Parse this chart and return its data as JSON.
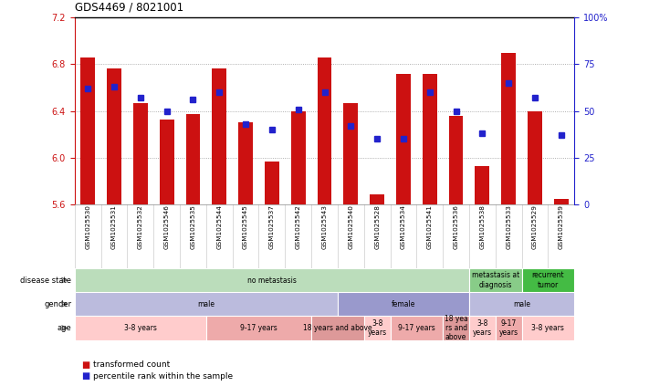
{
  "title": "GDS4469 / 8021001",
  "samples": [
    "GSM1025530",
    "GSM1025531",
    "GSM1025532",
    "GSM1025546",
    "GSM1025535",
    "GSM1025544",
    "GSM1025545",
    "GSM1025537",
    "GSM1025542",
    "GSM1025543",
    "GSM1025540",
    "GSM1025528",
    "GSM1025534",
    "GSM1025541",
    "GSM1025536",
    "GSM1025538",
    "GSM1025533",
    "GSM1025529",
    "GSM1025539"
  ],
  "transformed_count": [
    6.86,
    6.76,
    6.47,
    6.33,
    6.37,
    6.76,
    6.3,
    5.97,
    6.4,
    6.86,
    6.47,
    5.69,
    6.72,
    6.72,
    6.36,
    5.93,
    6.9,
    6.4,
    5.65
  ],
  "percentile_rank": [
    62,
    63,
    57,
    50,
    56,
    60,
    43,
    40,
    51,
    60,
    42,
    35,
    35,
    60,
    50,
    38,
    65,
    57,
    37
  ],
  "ylim_left": [
    5.6,
    7.2
  ],
  "ylim_right": [
    0,
    100
  ],
  "yticks_left": [
    5.6,
    6.0,
    6.4,
    6.8,
    7.2
  ],
  "yticks_right": [
    0,
    25,
    50,
    75,
    100
  ],
  "ytick_labels_right": [
    "0",
    "25",
    "50",
    "75",
    "100%"
  ],
  "bar_color": "#CC1111",
  "dot_color": "#2222CC",
  "grid_color": "#999999",
  "annotation_rows": [
    {
      "label": "disease state",
      "segments": [
        {
          "text": "no metastasis",
          "start": 0,
          "end": 15,
          "color": "#BBDDBB"
        },
        {
          "text": "metastasis at\ndiagnosis",
          "start": 15,
          "end": 17,
          "color": "#88CC88"
        },
        {
          "text": "recurrent\ntumor",
          "start": 17,
          "end": 19,
          "color": "#44BB44"
        }
      ]
    },
    {
      "label": "gender",
      "segments": [
        {
          "text": "male",
          "start": 0,
          "end": 10,
          "color": "#BBBBDD"
        },
        {
          "text": "female",
          "start": 10,
          "end": 15,
          "color": "#9999CC"
        },
        {
          "text": "male",
          "start": 15,
          "end": 19,
          "color": "#BBBBDD"
        }
      ]
    },
    {
      "label": "age",
      "segments": [
        {
          "text": "3-8 years",
          "start": 0,
          "end": 5,
          "color": "#FFCCCC"
        },
        {
          "text": "9-17 years",
          "start": 5,
          "end": 9,
          "color": "#EEAAAA"
        },
        {
          "text": "18 years and above",
          "start": 9,
          "end": 11,
          "color": "#DD9999"
        },
        {
          "text": "3-8\nyears",
          "start": 11,
          "end": 12,
          "color": "#FFCCCC"
        },
        {
          "text": "9-17 years",
          "start": 12,
          "end": 14,
          "color": "#EEAAAA"
        },
        {
          "text": "18 yea\nrs and\nabove",
          "start": 14,
          "end": 15,
          "color": "#DD9999"
        },
        {
          "text": "3-8\nyears",
          "start": 15,
          "end": 16,
          "color": "#FFCCCC"
        },
        {
          "text": "9-17\nyears",
          "start": 16,
          "end": 17,
          "color": "#EEAAAA"
        },
        {
          "text": "3-8 years",
          "start": 17,
          "end": 19,
          "color": "#FFCCCC"
        }
      ]
    }
  ],
  "legend_items": [
    {
      "color": "#CC1111",
      "label": "transformed count"
    },
    {
      "color": "#2222CC",
      "label": "percentile rank within the sample"
    }
  ]
}
